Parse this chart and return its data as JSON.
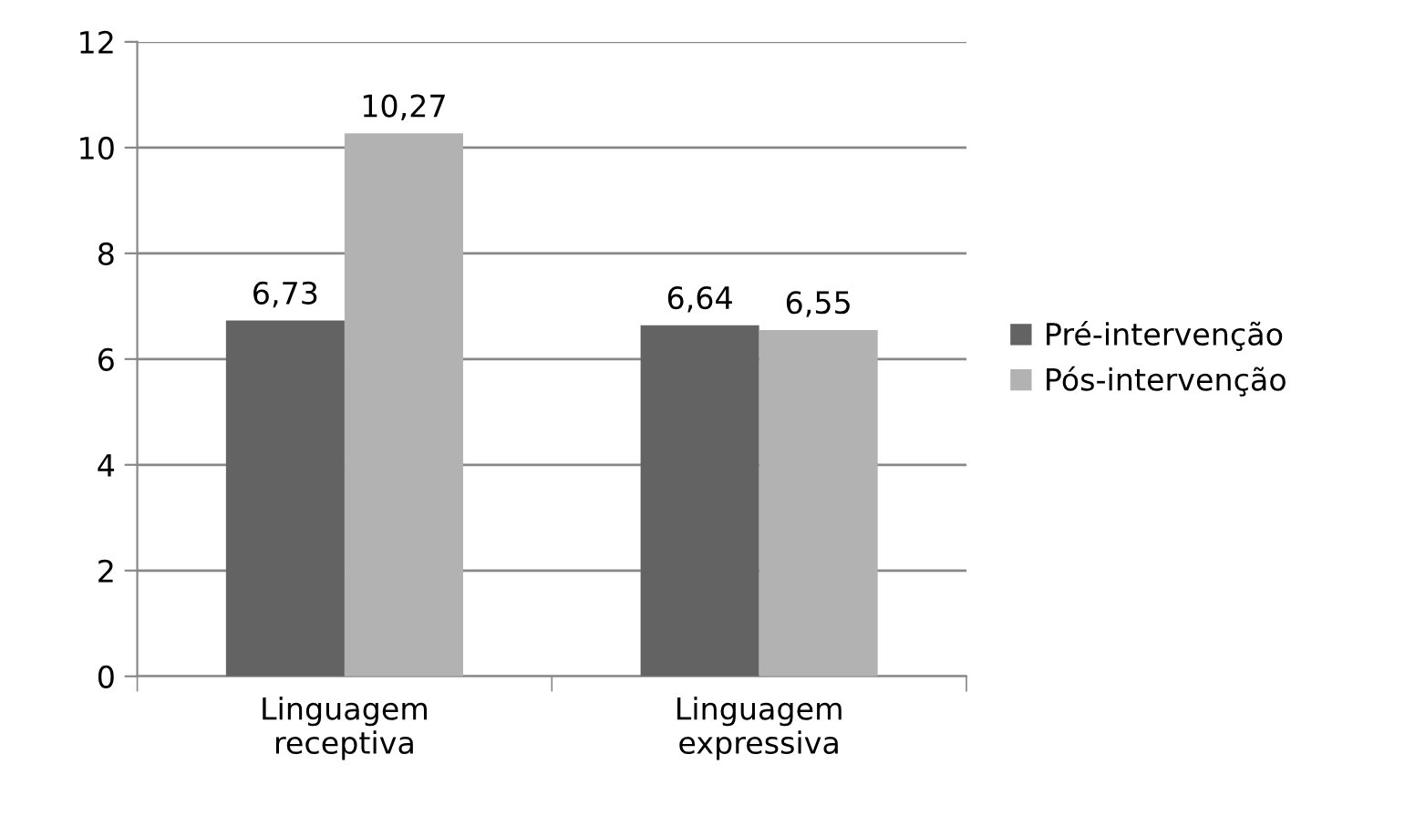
{
  "chart_data": {
    "type": "bar",
    "categories": [
      "Linguagem\nreceptiva",
      "Linguagem\nexpressiva"
    ],
    "series": [
      {
        "name": "Pré-intervenção",
        "color": "#636363",
        "values": [
          6.73,
          6.64
        ],
        "value_labels": [
          "6,73",
          "6,64"
        ]
      },
      {
        "name": "Pós-intervenção",
        "color": "#b2b2b2",
        "values": [
          10.27,
          6.55
        ],
        "value_labels": [
          "10,27",
          "6,55"
        ]
      }
    ],
    "ylim": [
      0,
      12
    ],
    "yticks": [
      0,
      2,
      4,
      6,
      8,
      10,
      12
    ],
    "grid": "y",
    "legend": "right"
  }
}
